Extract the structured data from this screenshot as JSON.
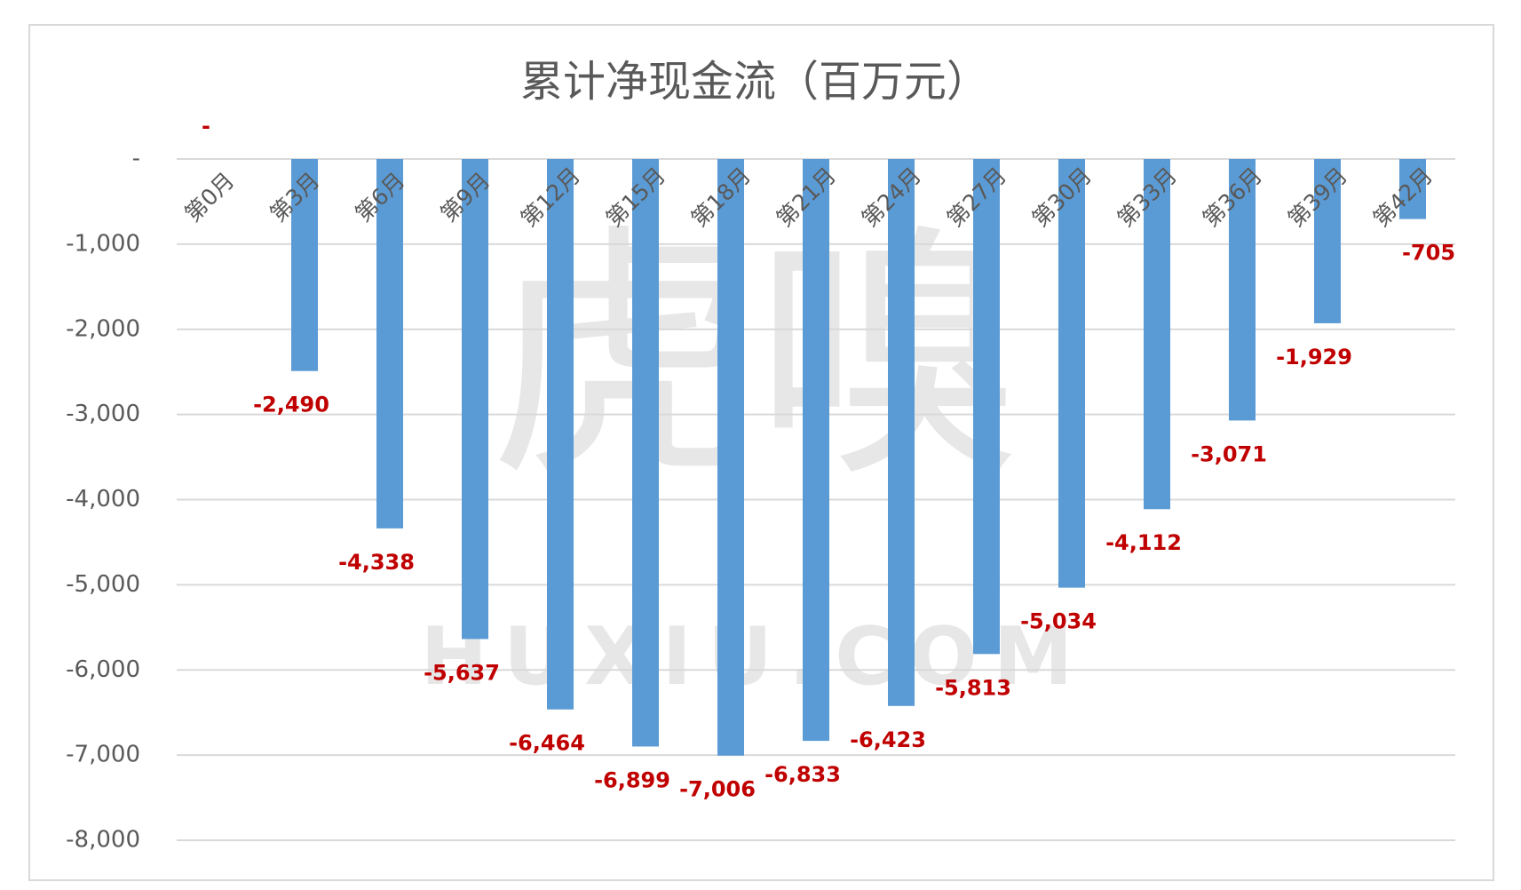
{
  "chart_data": {
    "type": "bar",
    "title": "累计净现金流（百万元）",
    "categories": [
      "第0月",
      "第3月",
      "第6月",
      "第9月",
      "第12月",
      "第15月",
      "第18月",
      "第21月",
      "第24月",
      "第27月",
      "第30月",
      "第33月",
      "第36月",
      "第39月",
      "第42月"
    ],
    "values": [
      0,
      -2490,
      -4338,
      -5637,
      -6464,
      -6899,
      -7006,
      -6833,
      -6423,
      -5813,
      -5034,
      -4112,
      -3071,
      -1929,
      -705
    ],
    "value_labels": [
      "-",
      "-2,490",
      "-4,338",
      "-5,637",
      "-6,464",
      "-6,899",
      "-7,006",
      "-6,833",
      "-6,423",
      "-5,813",
      "-5,034",
      "-4,112",
      "-3,071",
      "-1,929",
      "-705"
    ],
    "color": "#5b9bd5",
    "label_color": "#c00000",
    "ylim": [
      -8000,
      0
    ],
    "yticks": [
      {
        "value": 0,
        "label": "-"
      },
      {
        "value": -1000,
        "label": "-1,000"
      },
      {
        "value": -2000,
        "label": "-2,000"
      },
      {
        "value": -3000,
        "label": "-3,000"
      },
      {
        "value": -4000,
        "label": "-4,000"
      },
      {
        "value": -5000,
        "label": "-5,000"
      },
      {
        "value": -6000,
        "label": "-6,000"
      },
      {
        "value": -7000,
        "label": "-7,000"
      },
      {
        "value": -8000,
        "label": "-8,000"
      }
    ],
    "grid": true,
    "watermark": "虎嗅",
    "watermark_sub": "HUXIU.COM"
  }
}
